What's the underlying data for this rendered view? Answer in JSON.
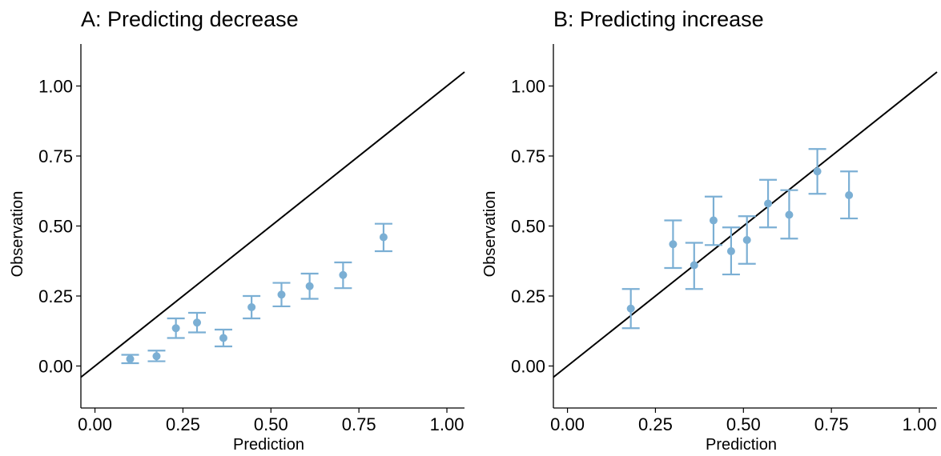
{
  "chart_data": [
    {
      "type": "scatter",
      "title": "A: Predicting decrease",
      "xlabel": "Prediction",
      "ylabel": "Observation",
      "xlim": [
        -0.04,
        1.05
      ],
      "ylim": [
        -0.15,
        1.15
      ],
      "xticks": [
        "0.00",
        "0.25",
        "0.50",
        "0.75",
        "1.00"
      ],
      "yticks": [
        "0.00",
        "0.25",
        "0.50",
        "0.75",
        "1.00"
      ],
      "reference_line": "y = x",
      "point_color": "#7bafd4",
      "grid": false,
      "points": [
        {
          "x": 0.1,
          "y": 0.025,
          "lo": 0.01,
          "hi": 0.04
        },
        {
          "x": 0.175,
          "y": 0.035,
          "lo": 0.017,
          "hi": 0.055
        },
        {
          "x": 0.23,
          "y": 0.135,
          "lo": 0.1,
          "hi": 0.17
        },
        {
          "x": 0.29,
          "y": 0.155,
          "lo": 0.12,
          "hi": 0.19
        },
        {
          "x": 0.365,
          "y": 0.1,
          "lo": 0.07,
          "hi": 0.13
        },
        {
          "x": 0.445,
          "y": 0.21,
          "lo": 0.17,
          "hi": 0.25
        },
        {
          "x": 0.53,
          "y": 0.255,
          "lo": 0.213,
          "hi": 0.297
        },
        {
          "x": 0.61,
          "y": 0.285,
          "lo": 0.24,
          "hi": 0.33
        },
        {
          "x": 0.705,
          "y": 0.325,
          "lo": 0.278,
          "hi": 0.37
        },
        {
          "x": 0.82,
          "y": 0.46,
          "lo": 0.41,
          "hi": 0.508
        }
      ]
    },
    {
      "type": "scatter",
      "title": "B: Predicting increase",
      "xlabel": "Prediction",
      "ylabel": "Observation",
      "xlim": [
        -0.04,
        1.05
      ],
      "ylim": [
        -0.15,
        1.15
      ],
      "xticks": [
        "0.00",
        "0.25",
        "0.50",
        "0.75",
        "1.00"
      ],
      "yticks": [
        "0.00",
        "0.25",
        "0.50",
        "0.75",
        "1.00"
      ],
      "reference_line": "y = x",
      "point_color": "#7bafd4",
      "grid": false,
      "points": [
        {
          "x": 0.18,
          "y": 0.205,
          "lo": 0.135,
          "hi": 0.275
        },
        {
          "x": 0.3,
          "y": 0.435,
          "lo": 0.35,
          "hi": 0.52
        },
        {
          "x": 0.36,
          "y": 0.36,
          "lo": 0.275,
          "hi": 0.44
        },
        {
          "x": 0.415,
          "y": 0.52,
          "lo": 0.432,
          "hi": 0.605
        },
        {
          "x": 0.465,
          "y": 0.41,
          "lo": 0.327,
          "hi": 0.495
        },
        {
          "x": 0.51,
          "y": 0.45,
          "lo": 0.365,
          "hi": 0.535
        },
        {
          "x": 0.57,
          "y": 0.58,
          "lo": 0.495,
          "hi": 0.665
        },
        {
          "x": 0.63,
          "y": 0.54,
          "lo": 0.455,
          "hi": 0.628
        },
        {
          "x": 0.71,
          "y": 0.695,
          "lo": 0.615,
          "hi": 0.775
        },
        {
          "x": 0.8,
          "y": 0.61,
          "lo": 0.527,
          "hi": 0.695
        }
      ]
    }
  ]
}
